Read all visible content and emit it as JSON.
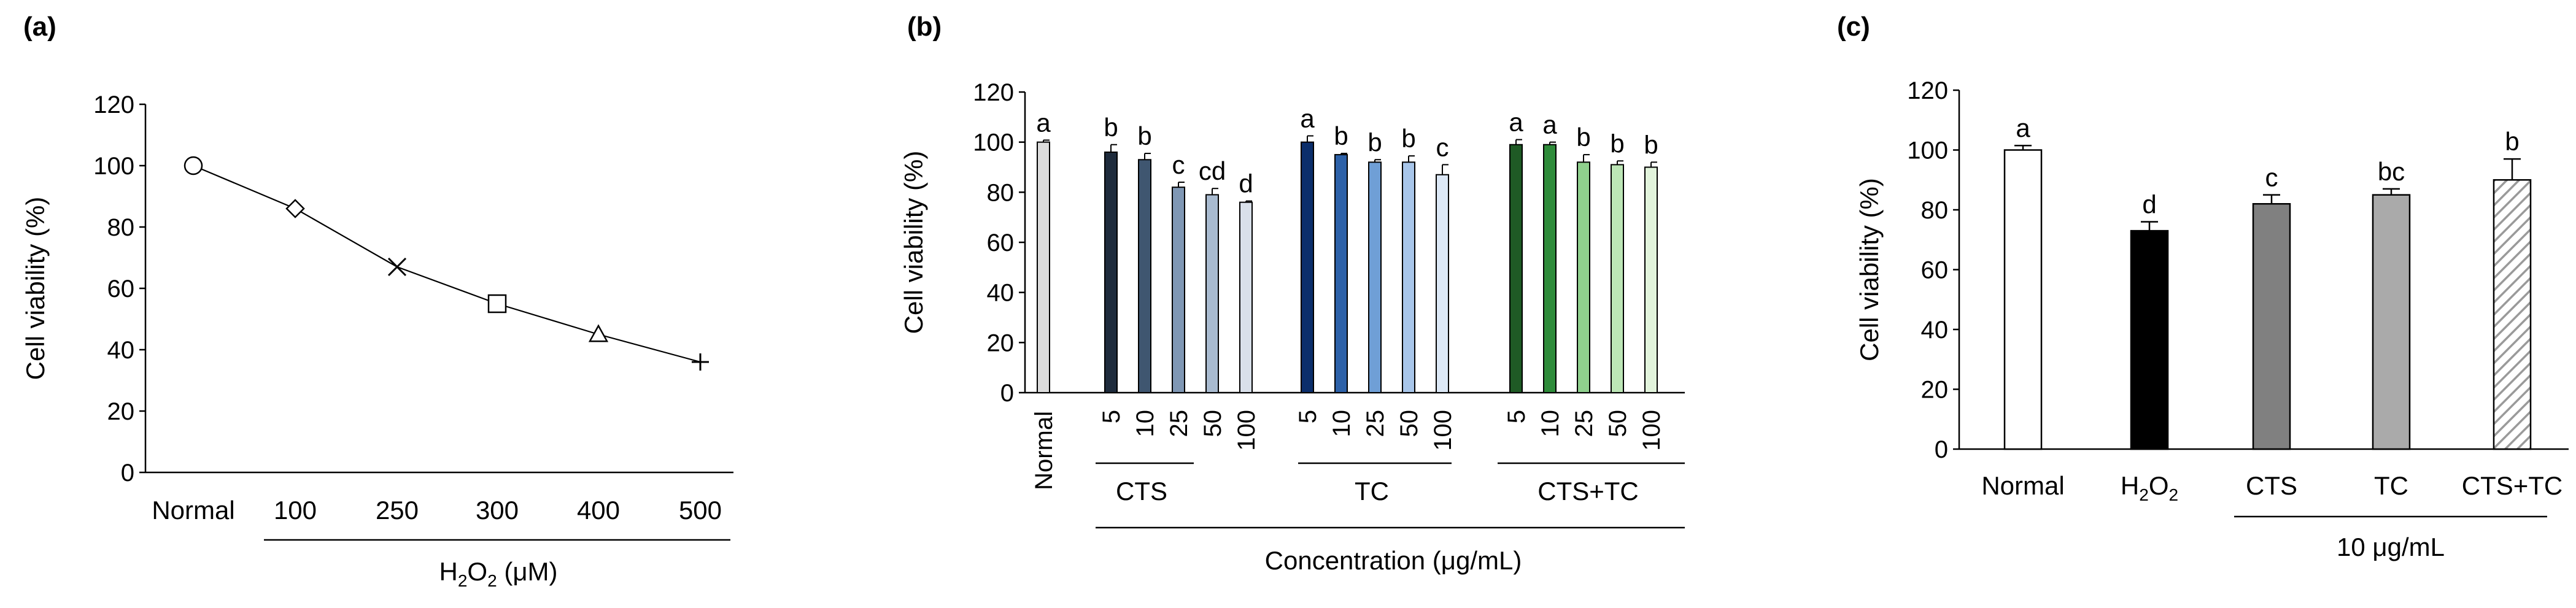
{
  "chart_data": [
    {
      "panel": "(a)",
      "type": "line",
      "categories": [
        "Normal",
        "100",
        "250",
        "300",
        "400",
        "500"
      ],
      "values": [
        100,
        86,
        67,
        55,
        45,
        36
      ],
      "markers": [
        "circle",
        "diamond",
        "x",
        "square",
        "triangle",
        "plus"
      ],
      "ylabel": "Cell viability (%)",
      "xlabel_main": "H",
      "xlabel_sub": "2",
      "xlabel_o": "O",
      "xlabel_sub2": "2",
      "xlabel_unit": " (μM)",
      "ylim": [
        0,
        120
      ],
      "yticks": [
        "0",
        "20",
        "40",
        "60",
        "80",
        "100",
        "120"
      ]
    },
    {
      "panel": "(b)",
      "type": "bar",
      "ylabel": "Cell viability (%)",
      "xlabel": "Concentration (μg/mL)",
      "ylim": [
        0,
        120
      ],
      "yticks": [
        "0",
        "20",
        "40",
        "60",
        "80",
        "100",
        "120"
      ],
      "normal": {
        "label": "Normal",
        "value": 100,
        "err": 0.8,
        "letter": "a",
        "color": "#dcdcdc"
      },
      "groups": [
        {
          "name": "CTS",
          "tick_labels": [
            "5",
            "10",
            "25",
            "50",
            "100"
          ],
          "values": [
            96,
            93,
            82,
            79,
            76
          ],
          "errors": [
            3,
            2.5,
            2,
            2.5,
            0.5
          ],
          "letters": [
            "b",
            "b",
            "c",
            "cd",
            "d"
          ],
          "colors": [
            "#1e2b3c",
            "#3f5670",
            "#7f97b4",
            "#a9bbd0",
            "#d9e0ea"
          ]
        },
        {
          "name": "TC",
          "tick_labels": [
            "5",
            "10",
            "25",
            "50",
            "100"
          ],
          "values": [
            100,
            95,
            92,
            92,
            87
          ],
          "errors": [
            2.5,
            0.5,
            1,
            2.5,
            4
          ],
          "letters": [
            "a",
            "b",
            "b",
            "b",
            "c"
          ],
          "colors": [
            "#0b2e6b",
            "#2d61a8",
            "#6f9fd6",
            "#a8c6ea",
            "#dce8f6"
          ]
        },
        {
          "name": "CTS+TC",
          "tick_labels": [
            "5",
            "10",
            "25",
            "50",
            "100"
          ],
          "values": [
            99,
            99,
            92,
            91,
            90
          ],
          "errors": [
            2,
            1,
            3,
            1.5,
            2
          ],
          "letters": [
            "a",
            "a",
            "b",
            "b",
            "b"
          ],
          "colors": [
            "#1f5a25",
            "#2e8b3a",
            "#8fd08d",
            "#bce6b6",
            "#e2f4dc"
          ]
        }
      ]
    },
    {
      "panel": "(c)",
      "type": "bar",
      "ylabel": "Cell viability (%)",
      "ylim": [
        0,
        120
      ],
      "yticks": [
        "0",
        "20",
        "40",
        "60",
        "80",
        "100",
        "120"
      ],
      "categories": [
        "Normal",
        "H2O2",
        "CTS",
        "TC",
        "CTS+TC"
      ],
      "h2o2_label": {
        "h": "H",
        "sub": "2",
        "o": "O",
        "sub2": "2"
      },
      "values": [
        100,
        73,
        82,
        85,
        90
      ],
      "errors": [
        1.5,
        3,
        3,
        2,
        7
      ],
      "letters": [
        "a",
        "d",
        "c",
        "bc",
        "b"
      ],
      "fills": [
        "#ffffff",
        "#000000",
        "#808080",
        "#aaaaaa",
        "hatch"
      ],
      "group_label": "10 μg/mL"
    }
  ]
}
